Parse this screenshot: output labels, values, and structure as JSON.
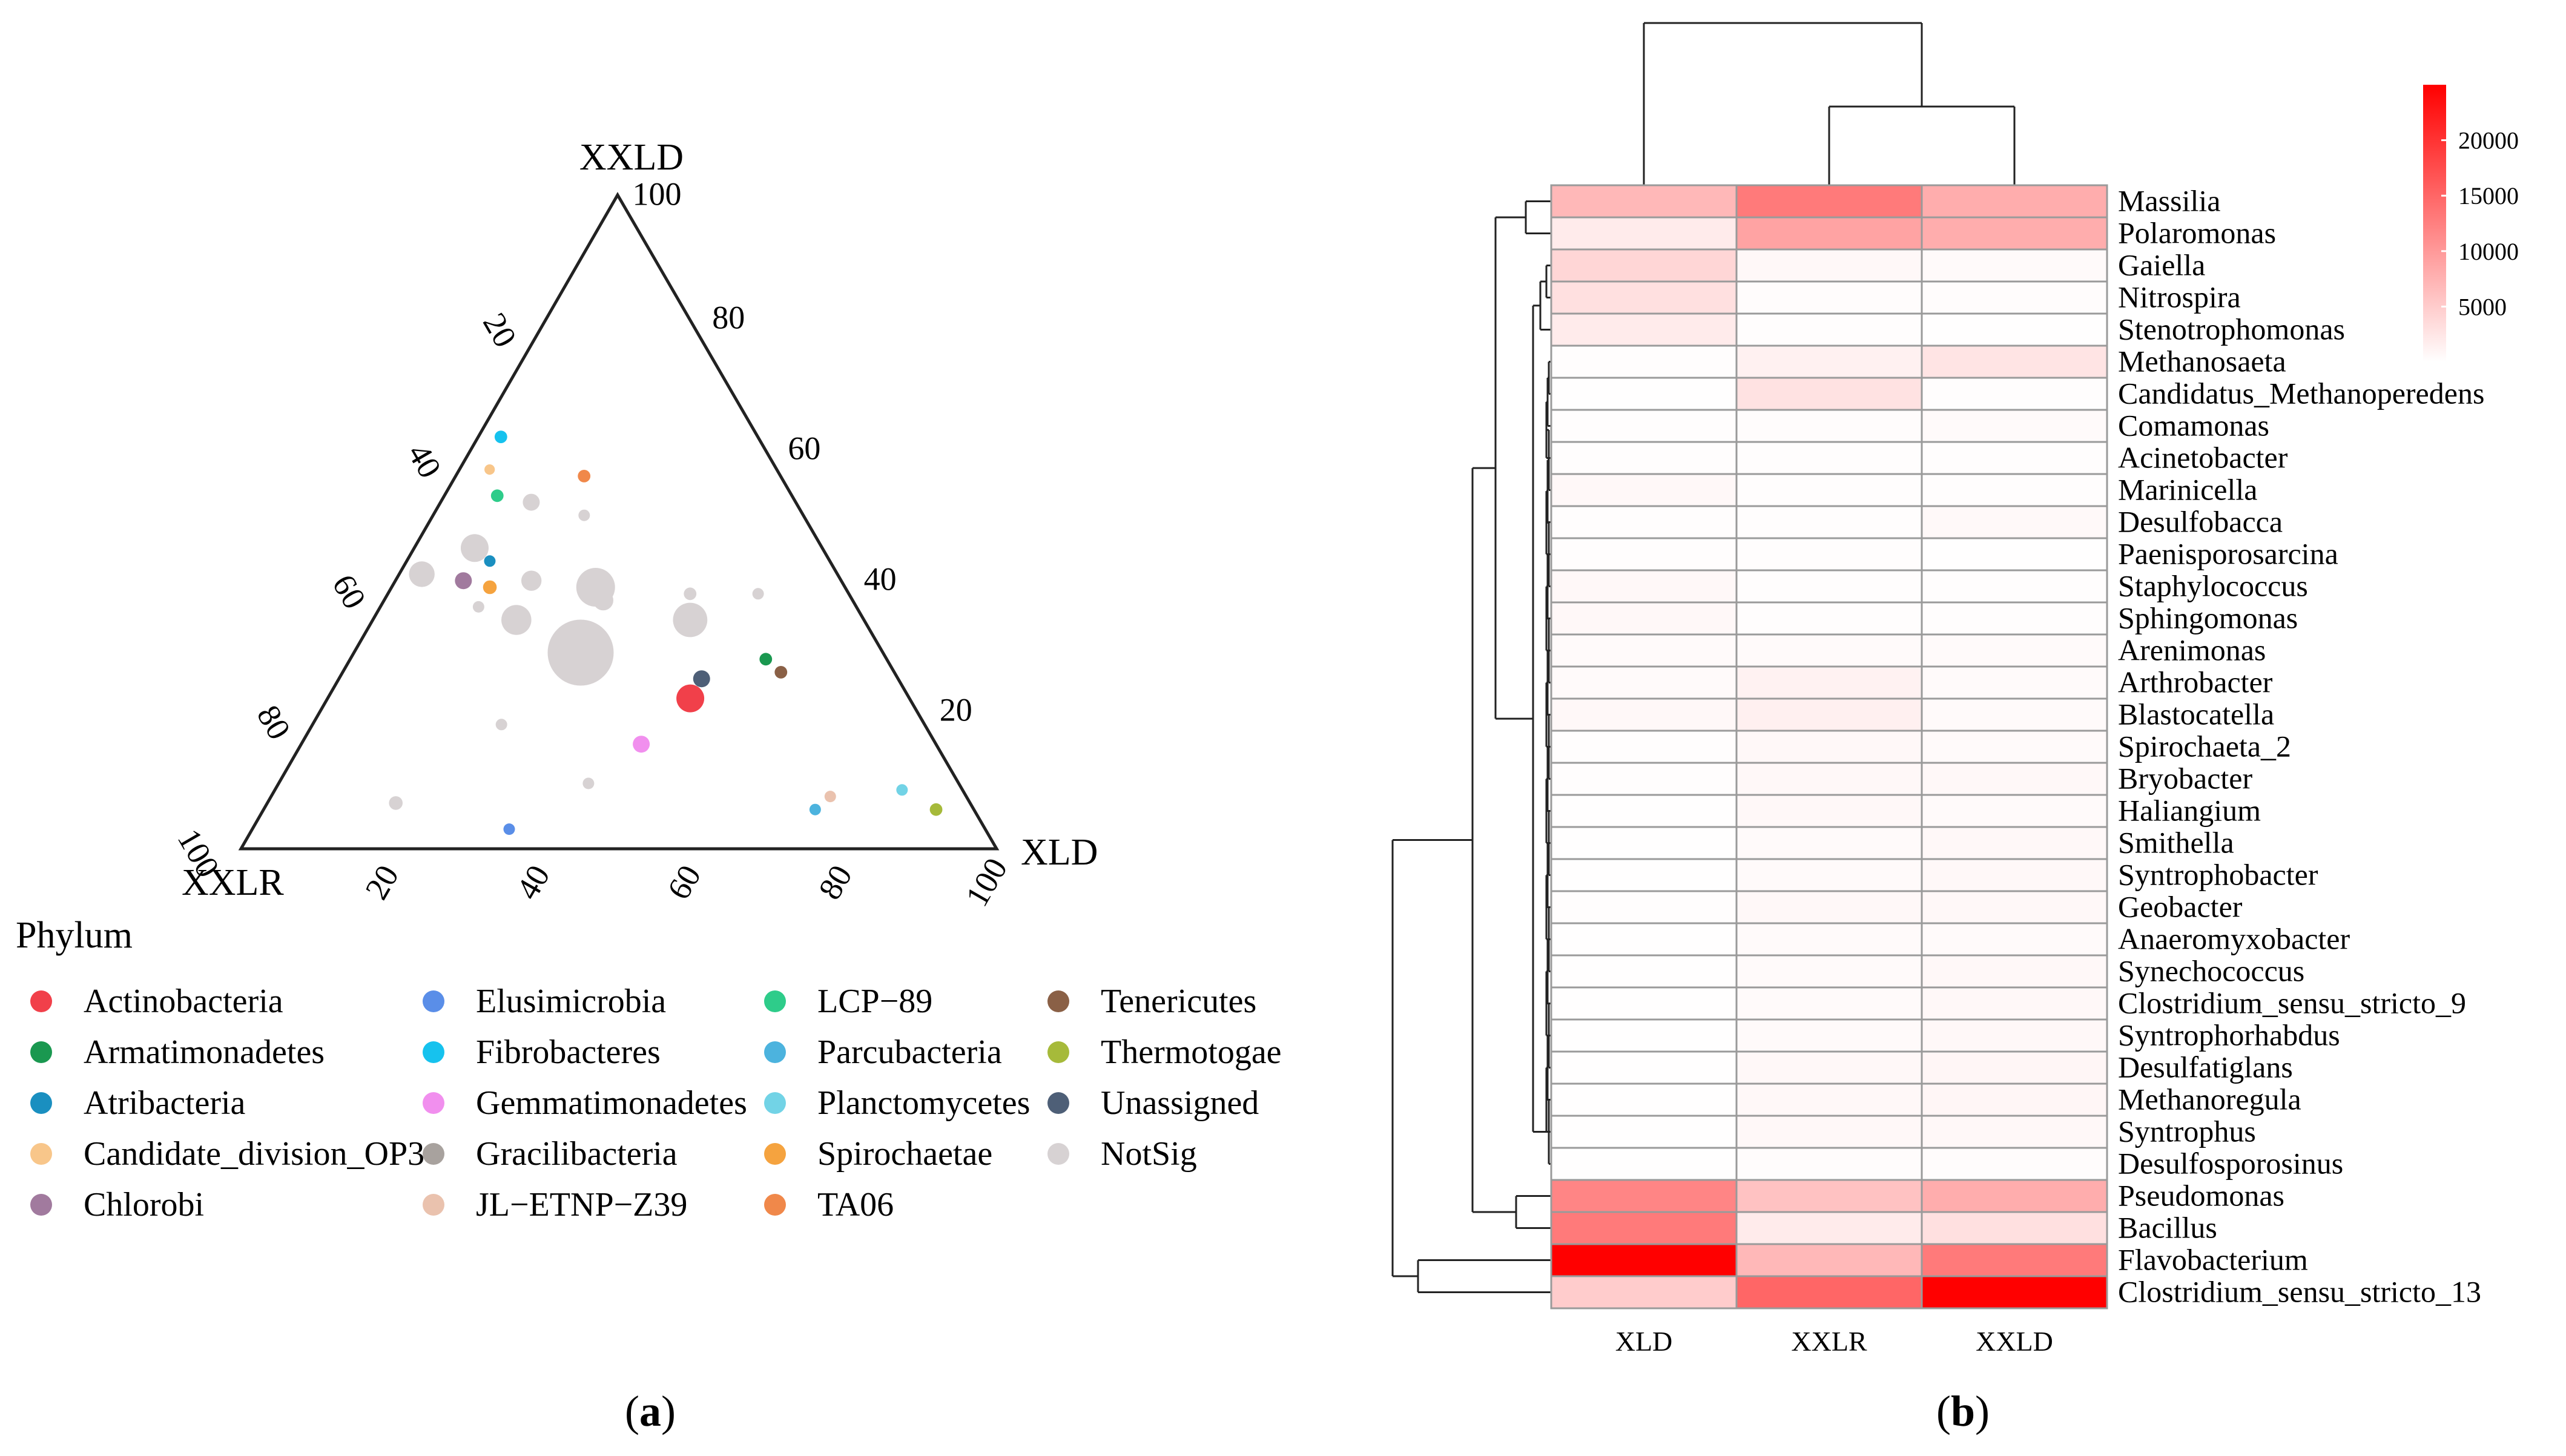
{
  "panel_a": {
    "caption": "(a)",
    "caption_letter": "a",
    "legend_title": "Phylum",
    "chart_data": {
      "type": "scatter",
      "subtype": "ternary",
      "axes": {
        "top": "XXLD",
        "left": "XXLR",
        "right": "XLD"
      },
      "left_edge_ticks": [
        "100",
        "20",
        "40",
        "60",
        "80",
        "100"
      ],
      "right_edge_ticks": [
        "80",
        "60",
        "40",
        "20"
      ],
      "bottom_edge_ticks": [
        "20",
        "40",
        "60",
        "80",
        "100"
      ],
      "legend": [
        {
          "name": "Actinobacteria",
          "color": "#F1404A"
        },
        {
          "name": "Armatimonadetes",
          "color": "#1A9850"
        },
        {
          "name": "Atribacteria",
          "color": "#1A8FC0"
        },
        {
          "name": "Candidate_division_OP3",
          "color": "#F8C68A"
        },
        {
          "name": "Chlorobi",
          "color": "#A17A9E"
        },
        {
          "name": "Elusimicrobia",
          "color": "#5A8EE8"
        },
        {
          "name": "Fibrobacteres",
          "color": "#16C2EE"
        },
        {
          "name": "Gemmatimonadetes",
          "color": "#F18FEE"
        },
        {
          "name": "Gracilibacteria",
          "color": "#A8A29E"
        },
        {
          "name": "JL−ETNP−Z39",
          "color": "#EAC2AE"
        },
        {
          "name": "LCP−89",
          "color": "#2ECC8A"
        },
        {
          "name": "Parcubacteria",
          "color": "#4CB3DE"
        },
        {
          "name": "Planctomycetes",
          "color": "#72D3E6"
        },
        {
          "name": "Spirochaetae",
          "color": "#F5A33F"
        },
        {
          "name": "TA06",
          "color": "#F0884A"
        },
        {
          "name": "Tenericutes",
          "color": "#8A6046"
        },
        {
          "name": "Thermotogae",
          "color": "#A6BA3A"
        },
        {
          "name": "Unassigned",
          "color": "#4E5F77"
        },
        {
          "name": "NotSig",
          "color": "#D7D2D3"
        }
      ],
      "points": [
        {
          "group": "NotSig",
          "XXLD": 30,
          "XXLR": 40,
          "XLD": 30,
          "size": 5.5
        },
        {
          "group": "NotSig",
          "XXLD": 40,
          "XXLR": 33,
          "XLD": 27,
          "size": 3.0
        },
        {
          "group": "NotSig",
          "XXLD": 35,
          "XXLR": 23,
          "XLD": 42,
          "size": 2.6
        },
        {
          "group": "NotSig",
          "XXLD": 35,
          "XXLR": 46,
          "XLD": 19,
          "size": 2.2
        },
        {
          "group": "NotSig",
          "XXLD": 46,
          "XXLR": 46,
          "XLD": 8,
          "size": 2.0
        },
        {
          "group": "NotSig",
          "XXLD": 42,
          "XXLR": 55,
          "XLD": 3,
          "size": 1.8
        },
        {
          "group": "NotSig",
          "XXLD": 41,
          "XXLR": 41,
          "XLD": 18,
          "size": 1.3
        },
        {
          "group": "NotSig",
          "XXLD": 38,
          "XXLR": 33,
          "XLD": 29,
          "size": 1.3
        },
        {
          "group": "NotSig",
          "XXLD": 53,
          "XXLR": 35,
          "XLD": 12,
          "size": 1.0
        },
        {
          "group": "NotSig",
          "XXLD": 27,
          "XXLR": 40,
          "XLD": 33,
          "size": 1.0
        },
        {
          "group": "NotSig",
          "XXLD": 7,
          "XXLR": 76,
          "XLD": 17,
          "size": 0.7
        },
        {
          "group": "NotSig",
          "XXLD": 39,
          "XXLR": 12,
          "XLD": 49,
          "size": 0.5
        },
        {
          "group": "NotSig",
          "XXLD": 37,
          "XXLR": 50,
          "XLD": 13,
          "size": 0.5
        },
        {
          "group": "NotSig",
          "XXLD": 19,
          "XXLR": 56,
          "XLD": 25,
          "size": 0.5
        },
        {
          "group": "NotSig",
          "XXLD": 10,
          "XXLR": 49,
          "XLD": 41,
          "size": 0.5
        },
        {
          "group": "NotSig",
          "XXLD": 51,
          "XXLR": 29,
          "XLD": 20,
          "size": 0.5
        },
        {
          "group": "NotSig",
          "XXLD": 39,
          "XXLR": 21,
          "XLD": 40,
          "size": 0.6
        },
        {
          "group": "Actinobacteria",
          "XXLD": 23,
          "XXLR": 29,
          "XLD": 48,
          "size": 2.0
        },
        {
          "group": "Unassigned",
          "XXLD": 26,
          "XXLR": 26,
          "XLD": 48,
          "size": 1.0
        },
        {
          "group": "Gemmatimonadetes",
          "XXLD": 16,
          "XXLR": 39,
          "XLD": 45,
          "size": 1.0
        },
        {
          "group": "Chlorobi",
          "XXLD": 41,
          "XXLR": 50,
          "XLD": 9,
          "size": 1.0
        },
        {
          "group": "Spirochaetae",
          "XXLD": 40,
          "XXLR": 47,
          "XLD": 13,
          "size": 0.7
        },
        {
          "group": "Fibrobacteres",
          "XXLD": 63,
          "XXLR": 34,
          "XLD": 3,
          "size": 0.6
        },
        {
          "group": "TA06",
          "XXLD": 57,
          "XXLR": 26,
          "XLD": 17,
          "size": 0.6
        },
        {
          "group": "LCP−89",
          "XXLD": 54,
          "XXLR": 39,
          "XLD": 7,
          "size": 0.6
        },
        {
          "group": "Atribacteria",
          "XXLD": 44,
          "XXLR": 45,
          "XLD": 11,
          "size": 0.5
        },
        {
          "group": "Armatimonadetes",
          "XXLD": 29,
          "XXLR": 16,
          "XLD": 55,
          "size": 0.6
        },
        {
          "group": "Tenericutes",
          "XXLD": 27,
          "XXLR": 15,
          "XLD": 58,
          "size": 0.6
        },
        {
          "group": "Thermotogae",
          "XXLD": 6,
          "XXLR": 5,
          "XLD": 89,
          "size": 0.6
        },
        {
          "group": "Planctomycetes",
          "XXLD": 9,
          "XXLR": 8,
          "XLD": 83,
          "size": 0.5
        },
        {
          "group": "JL−ETNP−Z39",
          "XXLD": 8,
          "XXLR": 18,
          "XLD": 74,
          "size": 0.5
        },
        {
          "group": "Parcubacteria",
          "XXLD": 6,
          "XXLR": 21,
          "XLD": 73,
          "size": 0.5
        },
        {
          "group": "Elusimicrobia",
          "XXLD": 3,
          "XXLR": 63,
          "XLD": 34,
          "size": 0.5
        },
        {
          "group": "Candidate_division_OP3",
          "XXLD": 58,
          "XXLR": 38,
          "XLD": 4,
          "size": 0.4
        }
      ]
    }
  },
  "panel_b": {
    "caption": "(b)",
    "caption_letter": "b",
    "chart_data": {
      "type": "heatmap",
      "columns": [
        "XLD",
        "XXLR",
        "XXLD"
      ],
      "rows": [
        "Massilia",
        "Polaromonas",
        "Gaiella",
        "Nitrospira",
        "Stenotrophomonas",
        "Methanosaeta",
        "Candidatus_Methanoperedens",
        "Comamonas",
        "Acinetobacter",
        "Marinicella",
        "Desulfobacca",
        "Paenisporosarcina",
        "Staphylococcus",
        "Sphingomonas",
        "Arenimonas",
        "Arthrobacter",
        "Blastocatella",
        "Spirochaeta_2",
        "Bryobacter",
        "Haliangium",
        "Smithella",
        "Syntrophobacter",
        "Geobacter",
        "Anaeromyxobacter",
        "Synechococcus",
        "Clostridium_sensu_stricto_9",
        "Syntrophorhabdus",
        "Desulfatiglans",
        "Methanoregula",
        "Syntrophus",
        "Desulfosporosinus",
        "Pseudomonas",
        "Bacillus",
        "Flavobacterium",
        "Clostridium_sensu_stricto_13"
      ],
      "values": [
        [
          7000,
          13000,
          8000
        ],
        [
          2000,
          9000,
          8000
        ],
        [
          4000,
          700,
          500
        ],
        [
          3000,
          300,
          300
        ],
        [
          2000,
          150,
          100
        ],
        [
          150,
          1400,
          2600
        ],
        [
          100,
          2800,
          150
        ],
        [
          150,
          300,
          500
        ],
        [
          200,
          150,
          150
        ],
        [
          700,
          150,
          150
        ],
        [
          200,
          150,
          600
        ],
        [
          150,
          150,
          100
        ],
        [
          700,
          150,
          150
        ],
        [
          700,
          150,
          150
        ],
        [
          500,
          500,
          500
        ],
        [
          500,
          1300,
          500
        ],
        [
          700,
          1500,
          500
        ],
        [
          150,
          700,
          500
        ],
        [
          150,
          700,
          700
        ],
        [
          100,
          700,
          500
        ],
        [
          100,
          500,
          700
        ],
        [
          100,
          500,
          700
        ],
        [
          150,
          700,
          700
        ],
        [
          100,
          500,
          500
        ],
        [
          100,
          500,
          700
        ],
        [
          100,
          500,
          700
        ],
        [
          100,
          500,
          700
        ],
        [
          100,
          700,
          900
        ],
        [
          100,
          700,
          900
        ],
        [
          100,
          700,
          700
        ],
        [
          100,
          300,
          300
        ],
        [
          12000,
          6000,
          8000
        ],
        [
          13000,
          2000,
          3000
        ],
        [
          25000,
          7000,
          13000
        ],
        [
          5000,
          15000,
          25000
        ]
      ],
      "colorbar": {
        "min": 0,
        "max": 25000,
        "ticks": [
          "5000",
          "10000",
          "15000",
          "20000"
        ],
        "tick_values": [
          5000,
          10000,
          15000,
          20000
        ],
        "low_color": "#FFFFFF",
        "high_color": "#FF0000"
      },
      "column_dendrogram": {
        "merge_order": [
          [
            "XXLR",
            "XXLD"
          ],
          [
            "XLD",
            "XXLR+XXLD"
          ]
        ]
      }
    }
  }
}
